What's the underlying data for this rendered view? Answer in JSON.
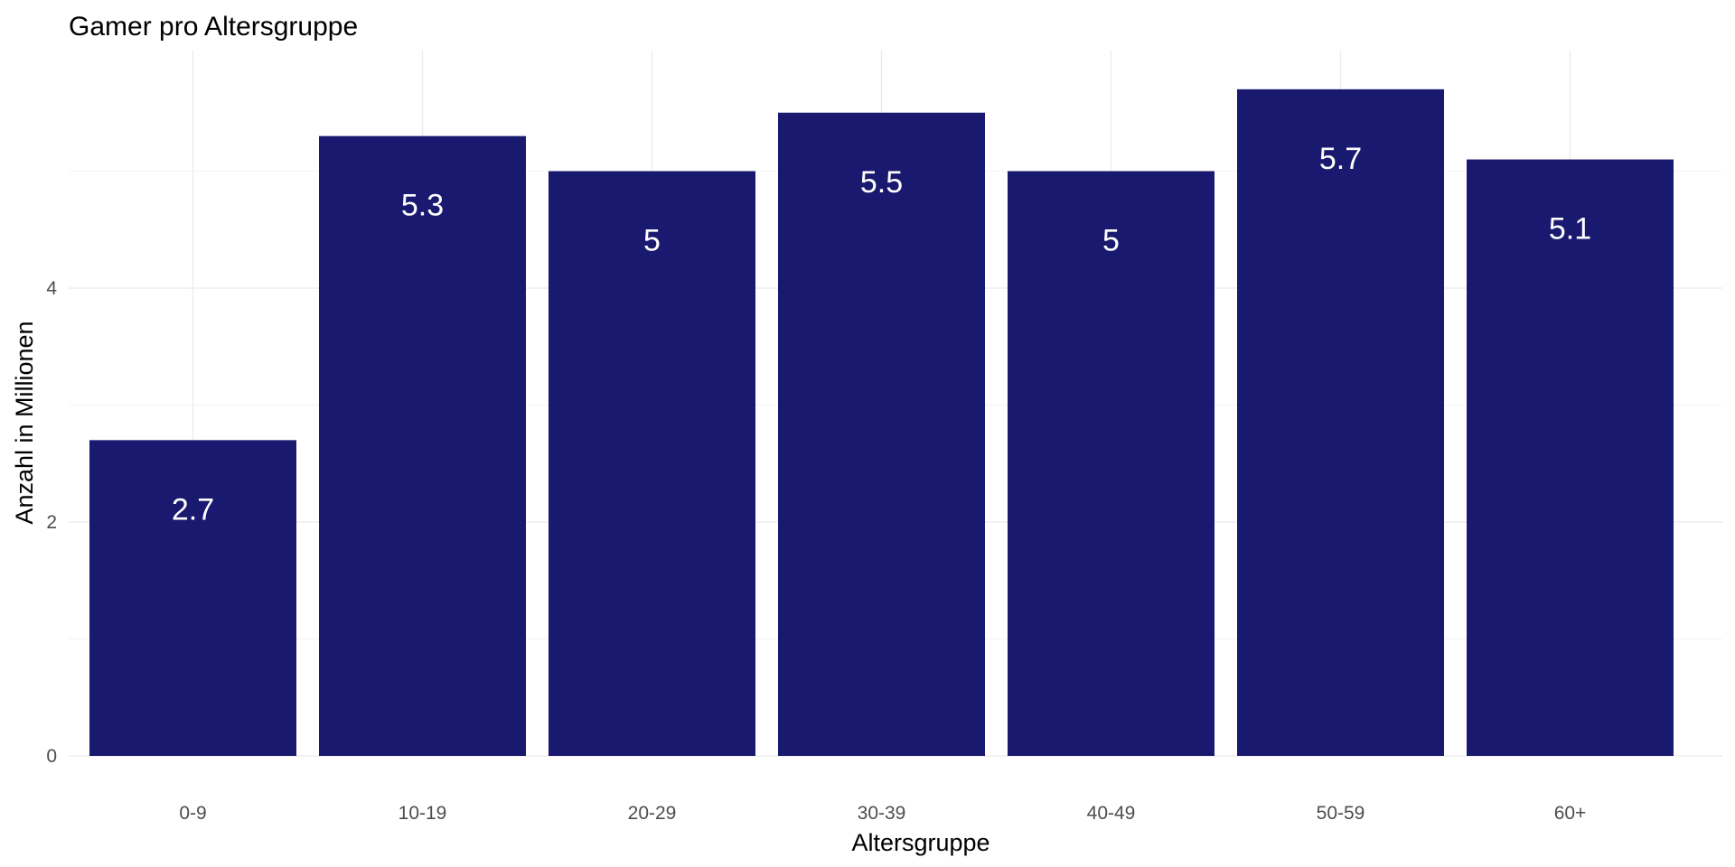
{
  "chart_data": {
    "type": "bar",
    "title": "Gamer pro Altersgruppe",
    "xlabel": "Altersgruppe",
    "ylabel": "Anzahl in Millionen",
    "categories": [
      "0-9",
      "10-19",
      "20-29",
      "30-39",
      "40-49",
      "50-59",
      "60+"
    ],
    "values": [
      2.7,
      5.3,
      5,
      5.5,
      5,
      5.7,
      5.1
    ],
    "data_labels": [
      "2.7",
      "5.3",
      "5",
      "5.5",
      "5",
      "5.7",
      "5.1"
    ],
    "yticks": [
      0,
      2,
      4
    ],
    "ylim": [
      0,
      5.985
    ],
    "grid": true,
    "legend": "none",
    "bar_color": "#191970",
    "label_color": "#ffffff"
  }
}
